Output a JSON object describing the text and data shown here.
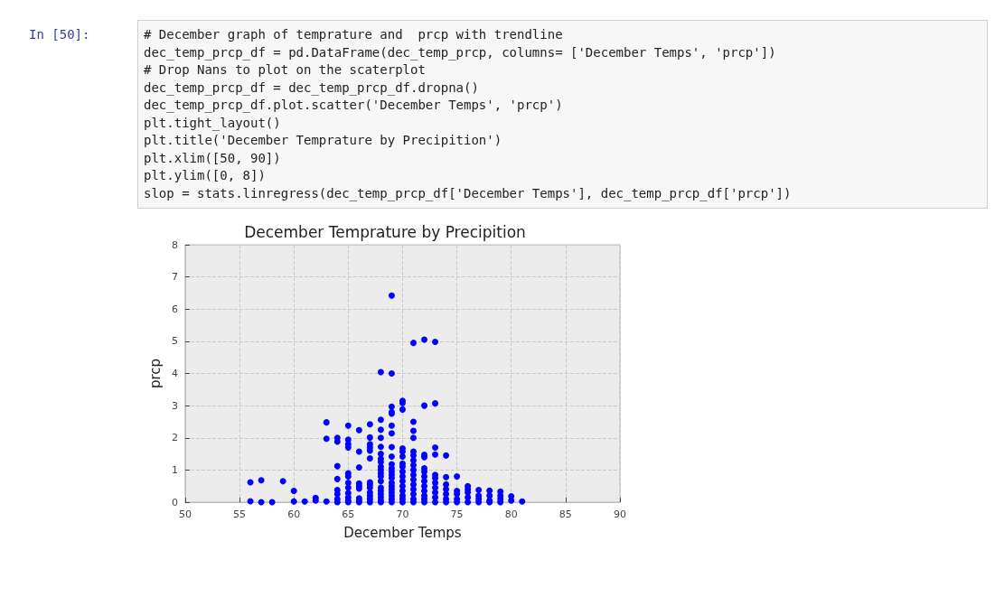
{
  "chart_data": {
    "type": "scatter",
    "title": "December Temprature by Precipition",
    "xlabel": "December Temps",
    "ylabel": "prcp",
    "annotations": [
      "In [50]:",
      "# December graph of temprature and  prcp with trendline",
      "dec_temp_prcp_df = pd.DataFrame(dec_temp_prcp, columns= ['December Temps', 'prcp'])",
      "# Drop Nans to plot on the scaterplot",
      "dec_temp_prcp_df = dec_temp_prcp_df.dropna()",
      "dec_temp_prcp_df.plot.scatter('December Temps', 'prcp')",
      "plt.tight_layout()",
      "plt.title('December Temprature by Precipition')",
      "plt.xlim([50, 90])",
      "plt.ylim([0, 8])",
      "slop = stats.linregress(dec_temp_prcp_df['December Temps'], dec_temp_prcp_df['prcp'])"
    ],
    "xlim": [
      50,
      90
    ],
    "ylim": [
      0,
      8
    ],
    "xticks": [
      50,
      55,
      60,
      65,
      70,
      75,
      80,
      85,
      90
    ],
    "yticks": [
      0,
      1,
      2,
      3,
      4,
      5,
      6,
      7,
      8
    ],
    "grid": true,
    "marker": "circle",
    "series": [
      {
        "color": "#0000ff",
        "x": [
          56,
          56,
          57,
          57,
          58,
          59,
          60,
          60,
          61,
          62,
          62,
          63,
          63,
          63,
          64,
          64,
          64,
          64,
          64,
          64,
          64,
          64,
          65,
          65,
          65,
          65,
          65,
          65,
          65,
          65,
          65,
          65,
          65,
          65,
          66,
          66,
          66,
          66,
          66,
          66,
          66,
          66,
          66,
          67,
          67,
          67,
          67,
          67,
          67,
          67,
          67,
          67,
          67,
          67,
          67,
          67,
          68,
          68,
          68,
          68,
          68,
          68,
          68,
          68,
          68,
          68,
          68,
          68,
          68,
          68,
          68,
          68,
          68,
          68,
          68,
          69,
          69,
          69,
          69,
          69,
          69,
          69,
          69,
          69,
          69,
          69,
          69,
          69,
          69,
          69,
          69,
          69,
          69,
          69,
          69,
          69,
          70,
          70,
          70,
          70,
          70,
          70,
          70,
          70,
          70,
          70,
          70,
          70,
          70,
          70,
          70,
          70,
          71,
          71,
          71,
          71,
          71,
          71,
          71,
          71,
          71,
          71,
          71,
          71,
          71,
          71,
          71,
          71,
          72,
          72,
          72,
          72,
          72,
          72,
          72,
          72,
          72,
          72,
          72,
          72,
          72,
          73,
          73,
          73,
          73,
          73,
          73,
          73,
          73,
          73,
          73,
          73,
          74,
          74,
          74,
          74,
          74,
          74,
          74,
          75,
          75,
          75,
          75,
          75,
          76,
          76,
          76,
          76,
          76,
          77,
          77,
          77,
          77,
          78,
          78,
          78,
          78,
          79,
          79,
          79,
          79,
          80,
          80,
          81
        ],
        "values": [
          0.62,
          0.03,
          0.68,
          0.0,
          0.0,
          0.65,
          0.35,
          0.02,
          0.02,
          0.13,
          0.05,
          2.48,
          1.97,
          0.02,
          2.0,
          1.88,
          1.12,
          0.72,
          0.38,
          0.25,
          0.1,
          0.0,
          2.38,
          1.94,
          1.8,
          1.7,
          0.9,
          0.8,
          0.6,
          0.45,
          0.28,
          0.15,
          0.05,
          0.0,
          2.24,
          1.57,
          1.08,
          0.58,
          0.5,
          0.42,
          0.12,
          0.05,
          0.0,
          2.42,
          2.01,
          1.8,
          1.7,
          1.6,
          1.36,
          0.62,
          0.55,
          0.45,
          0.3,
          0.2,
          0.1,
          0.0,
          4.04,
          2.56,
          2.25,
          2.0,
          1.72,
          1.5,
          1.35,
          1.25,
          1.1,
          1.0,
          0.9,
          0.8,
          0.65,
          0.45,
          0.35,
          0.25,
          0.15,
          0.05,
          0.0,
          6.42,
          4.0,
          2.97,
          2.8,
          2.75,
          2.38,
          2.14,
          1.71,
          1.42,
          1.18,
          1.05,
          0.95,
          0.85,
          0.75,
          0.6,
          0.5,
          0.4,
          0.3,
          0.2,
          0.1,
          0.0,
          3.15,
          3.08,
          2.88,
          1.67,
          1.57,
          1.42,
          1.2,
          1.1,
          0.95,
          0.8,
          0.65,
          0.5,
          0.35,
          0.2,
          0.1,
          0.0,
          4.95,
          2.5,
          2.22,
          2.0,
          1.57,
          1.45,
          1.3,
          1.15,
          1.0,
          0.85,
          0.7,
          0.55,
          0.4,
          0.25,
          0.1,
          0.0,
          5.05,
          3.0,
          1.47,
          1.4,
          1.05,
          0.95,
          0.8,
          0.65,
          0.5,
          0.35,
          0.2,
          0.1,
          0.0,
          4.98,
          3.07,
          1.7,
          1.48,
          0.85,
          0.75,
          0.6,
          0.45,
          0.3,
          0.15,
          0.0,
          1.45,
          0.78,
          0.55,
          0.4,
          0.25,
          0.1,
          0.0,
          0.8,
          0.35,
          0.25,
          0.1,
          0.0,
          0.5,
          0.4,
          0.3,
          0.15,
          0.0,
          0.38,
          0.2,
          0.1,
          0.0,
          0.36,
          0.2,
          0.05,
          0.0,
          0.33,
          0.2,
          0.1,
          0.0,
          0.18,
          0.05,
          0.02
        ]
      }
    ]
  }
}
